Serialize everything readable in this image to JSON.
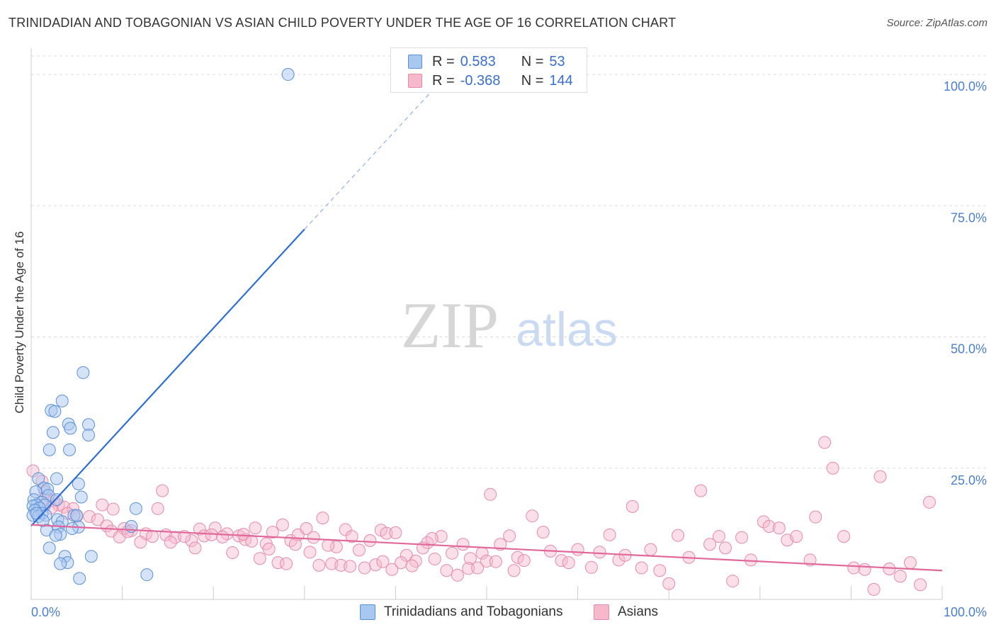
{
  "title": "TRINIDADIAN AND TOBAGONIAN VS ASIAN CHILD POVERTY UNDER THE AGE OF 16 CORRELATION CHART",
  "source": "Source: ZipAtlas.com",
  "watermark": {
    "zip": "ZIP",
    "atlas": "atlas"
  },
  "legend_top": {
    "rows": [
      {
        "r_label": "R =",
        "r_value": "0.583",
        "n_label": "N =",
        "n_value": "53"
      },
      {
        "r_label": "R =",
        "r_value": "-0.368",
        "n_label": "N =",
        "n_value": "144"
      }
    ]
  },
  "legend_bottom": {
    "items": [
      "Trinidadians and Tobagonians",
      "Asians"
    ]
  },
  "colors": {
    "blue_fill": "#a9c8f0",
    "blue_stroke": "#5b8fd6",
    "blue_line": "#2f6fd1",
    "pink_fill": "#f6b9cc",
    "pink_stroke": "#e58aa8",
    "pink_line": "#e0689a",
    "axis_text": "#4a7fd0",
    "grid": "#dddddd"
  },
  "chart_data": {
    "type": "scatter",
    "title": "TRINIDADIAN AND TOBAGONIAN VS ASIAN CHILD POVERTY UNDER THE AGE OF 16 CORRELATION CHART",
    "xlabel": "",
    "ylabel": "Child Poverty Under the Age of 16",
    "xlim": [
      0,
      100
    ],
    "ylim": [
      0,
      105
    ],
    "x_tick_labels": [
      "0.0%",
      "100.0%"
    ],
    "y_ticks": [
      25,
      50,
      75,
      100
    ],
    "y_tick_labels": [
      "25.0%",
      "50.0%",
      "75.0%",
      "100.0%"
    ],
    "grid": true,
    "series": [
      {
        "name": "Trinidadians and Tobagonians",
        "r": 0.583,
        "n": 53,
        "trend": {
          "x0": 0,
          "y0": 14.0,
          "x1": 30,
          "y1": 70.5,
          "dashed_to_x": 46
        },
        "points": [
          [
            28.2,
            100
          ],
          [
            5.7,
            43.2
          ],
          [
            3.4,
            37.8
          ],
          [
            2.2,
            36.0
          ],
          [
            2.6,
            35.8
          ],
          [
            4.1,
            33.4
          ],
          [
            6.3,
            33.3
          ],
          [
            4.3,
            32.6
          ],
          [
            2.4,
            31.8
          ],
          [
            6.3,
            31.3
          ],
          [
            2.0,
            28.5
          ],
          [
            4.2,
            28.5
          ],
          [
            2.8,
            23.0
          ],
          [
            0.8,
            23.0
          ],
          [
            5.2,
            22.0
          ],
          [
            1.4,
            21.2
          ],
          [
            1.8,
            21.0
          ],
          [
            0.5,
            20.5
          ],
          [
            1.9,
            19.8
          ],
          [
            5.5,
            19.5
          ],
          [
            0.3,
            19.0
          ],
          [
            2.8,
            19.0
          ],
          [
            1.2,
            18.5
          ],
          [
            0.6,
            18.0
          ],
          [
            1.5,
            18.0
          ],
          [
            0.2,
            17.8
          ],
          [
            0.9,
            17.4
          ],
          [
            11.5,
            17.3
          ],
          [
            0.4,
            17.0
          ],
          [
            1.2,
            16.4
          ],
          [
            0.2,
            16.0
          ],
          [
            1.6,
            16.0
          ],
          [
            4.7,
            16.0
          ],
          [
            5.0,
            16.0
          ],
          [
            0.8,
            15.8
          ],
          [
            2.9,
            15.2
          ],
          [
            1.3,
            15.0
          ],
          [
            3.4,
            14.8
          ],
          [
            11.0,
            13.9
          ],
          [
            3.0,
            13.8
          ],
          [
            5.2,
            13.8
          ],
          [
            4.5,
            13.5
          ],
          [
            1.7,
            13.2
          ],
          [
            3.2,
            12.4
          ],
          [
            2.7,
            12.2
          ],
          [
            2.0,
            9.8
          ],
          [
            3.7,
            8.2
          ],
          [
            6.6,
            8.2
          ],
          [
            4.0,
            7.0
          ],
          [
            3.2,
            6.8
          ],
          [
            12.7,
            4.7
          ],
          [
            5.3,
            4.0
          ],
          [
            0.6,
            16.4
          ]
        ]
      },
      {
        "name": "Asians",
        "r": -0.368,
        "n": 144,
        "trend": {
          "x0": 0,
          "y0": 14.2,
          "x1": 100,
          "y1": 5.5
        },
        "points": [
          [
            0.2,
            24.5
          ],
          [
            1.2,
            22.5
          ],
          [
            1.5,
            20.5
          ],
          [
            1.8,
            19.2
          ],
          [
            2.5,
            18.8
          ],
          [
            3.0,
            18.0
          ],
          [
            3.6,
            17.6
          ],
          [
            2.2,
            17.4
          ],
          [
            4.6,
            17.3
          ],
          [
            7.8,
            18.0
          ],
          [
            9.0,
            17.2
          ],
          [
            13.9,
            17.3
          ],
          [
            14.4,
            20.7
          ],
          [
            4.0,
            16.4
          ],
          [
            5.0,
            15.8
          ],
          [
            6.4,
            15.8
          ],
          [
            7.3,
            15.2
          ],
          [
            10.2,
            13.5
          ],
          [
            11.0,
            13.1
          ],
          [
            12.6,
            12.5
          ],
          [
            14.8,
            12.3
          ],
          [
            15.8,
            11.8
          ],
          [
            17.6,
            11.2
          ],
          [
            18.5,
            13.4
          ],
          [
            19.0,
            12.1
          ],
          [
            20.2,
            13.6
          ],
          [
            21.5,
            12.5
          ],
          [
            22.8,
            12.1
          ],
          [
            23.5,
            11.4
          ],
          [
            24.6,
            13.6
          ],
          [
            25.8,
            10.6
          ],
          [
            26.5,
            12.8
          ],
          [
            27.6,
            14.2
          ],
          [
            28.5,
            11.2
          ],
          [
            29.3,
            12.3
          ],
          [
            30.2,
            13.5
          ],
          [
            31.0,
            11.8
          ],
          [
            32.0,
            15.5
          ],
          [
            33.5,
            10.0
          ],
          [
            34.5,
            13.3
          ],
          [
            35.2,
            12.0
          ],
          [
            36.0,
            9.4
          ],
          [
            37.2,
            11.2
          ],
          [
            38.4,
            13.2
          ],
          [
            39.0,
            12.6
          ],
          [
            40.0,
            12.7
          ],
          [
            41.2,
            8.4
          ],
          [
            42.2,
            7.3
          ],
          [
            43.5,
            10.8
          ],
          [
            44.3,
            7.7
          ],
          [
            45.0,
            12.0
          ],
          [
            46.2,
            8.8
          ],
          [
            47.4,
            10.5
          ],
          [
            48.2,
            7.8
          ],
          [
            49.5,
            8.8
          ],
          [
            50.4,
            20.0
          ],
          [
            51.5,
            10.5
          ],
          [
            52.5,
            12.1
          ],
          [
            53.4,
            8.0
          ],
          [
            54.1,
            7.4
          ],
          [
            55.0,
            15.9
          ],
          [
            56.2,
            12.8
          ],
          [
            57.0,
            9.2
          ],
          [
            58.2,
            7.4
          ],
          [
            59.0,
            7.0
          ],
          [
            60.0,
            9.5
          ],
          [
            61.5,
            6.1
          ],
          [
            62.4,
            9.0
          ],
          [
            63.5,
            12.3
          ],
          [
            64.5,
            7.5
          ],
          [
            65.2,
            8.4
          ],
          [
            66.0,
            17.7
          ],
          [
            67.0,
            6.0
          ],
          [
            68.0,
            9.5
          ],
          [
            69.0,
            5.5
          ],
          [
            70.0,
            3.0
          ],
          [
            71.0,
            12.2
          ],
          [
            72.2,
            8.0
          ],
          [
            73.5,
            20.7
          ],
          [
            74.5,
            10.5
          ],
          [
            75.5,
            12.0
          ],
          [
            76.2,
            9.8
          ],
          [
            77.0,
            3.5
          ],
          [
            78.0,
            11.8
          ],
          [
            79.0,
            7.5
          ],
          [
            80.4,
            14.8
          ],
          [
            81.0,
            13.9
          ],
          [
            82.1,
            13.6
          ],
          [
            83.0,
            11.3
          ],
          [
            84.0,
            12.0
          ],
          [
            85.5,
            7.5
          ],
          [
            86.1,
            15.7
          ],
          [
            87.1,
            29.9
          ],
          [
            88.0,
            25.0
          ],
          [
            89.2,
            12.0
          ],
          [
            90.3,
            6.0
          ],
          [
            91.5,
            5.7
          ],
          [
            92.5,
            1.9
          ],
          [
            93.2,
            23.4
          ],
          [
            94.2,
            5.8
          ],
          [
            95.4,
            4.4
          ],
          [
            96.5,
            7.0
          ],
          [
            97.6,
            2.8
          ],
          [
            98.6,
            18.5
          ],
          [
            8.3,
            14.0
          ],
          [
            8.8,
            13.0
          ],
          [
            9.7,
            11.9
          ],
          [
            10.6,
            12.9
          ],
          [
            12.0,
            10.9
          ],
          [
            13.3,
            12.0
          ],
          [
            15.3,
            10.9
          ],
          [
            16.8,
            12.0
          ],
          [
            18.0,
            9.8
          ],
          [
            19.8,
            12.3
          ],
          [
            21.0,
            11.9
          ],
          [
            22.1,
            8.9
          ],
          [
            23.3,
            12.4
          ],
          [
            24.2,
            11.1
          ],
          [
            25.1,
            7.8
          ],
          [
            26.1,
            9.6
          ],
          [
            27.1,
            7.0
          ],
          [
            28.0,
            6.8
          ],
          [
            29.0,
            10.5
          ],
          [
            30.6,
            9.0
          ],
          [
            31.6,
            6.5
          ],
          [
            32.6,
            10.3
          ],
          [
            33.0,
            6.8
          ],
          [
            34.0,
            6.5
          ],
          [
            35.0,
            6.3
          ],
          [
            36.6,
            6.0
          ],
          [
            37.8,
            6.6
          ],
          [
            38.6,
            7.2
          ],
          [
            39.6,
            5.7
          ],
          [
            40.6,
            7.0
          ],
          [
            41.8,
            6.4
          ],
          [
            43.0,
            9.8
          ],
          [
            44.0,
            11.6
          ],
          [
            45.6,
            5.5
          ],
          [
            46.8,
            4.6
          ],
          [
            48.0,
            5.9
          ],
          [
            49.0,
            6.0
          ],
          [
            50.0,
            7.3
          ],
          [
            51.0,
            7.2
          ],
          [
            53.0,
            5.5
          ]
        ]
      }
    ]
  }
}
